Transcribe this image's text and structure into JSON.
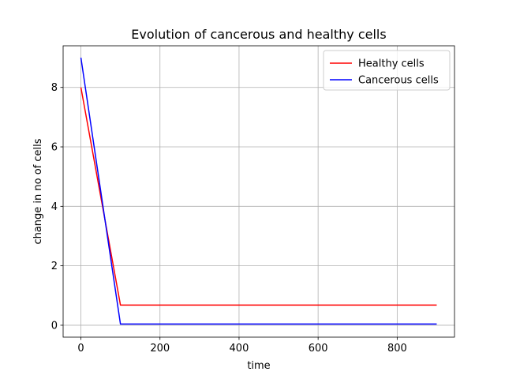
{
  "chart_data": {
    "type": "line",
    "title": "Evolution of cancerous and healthy cells",
    "xlabel": "time",
    "ylabel": "change in no of cells",
    "xlim": [
      -45,
      945
    ],
    "ylim": [
      -0.4,
      9.4
    ],
    "xticks": [
      0,
      200,
      400,
      600,
      800
    ],
    "yticks": [
      0,
      2,
      4,
      6,
      8
    ],
    "grid": true,
    "legend_position": "top-right",
    "series": [
      {
        "name": "Healthy cells",
        "color": "#ff0000",
        "x": [
          0,
          100,
          900
        ],
        "y": [
          8.0,
          0.68,
          0.68
        ]
      },
      {
        "name": "Cancerous cells",
        "color": "#0000ff",
        "x": [
          0,
          100,
          900
        ],
        "y": [
          9.0,
          0.04,
          0.04
        ]
      }
    ]
  }
}
